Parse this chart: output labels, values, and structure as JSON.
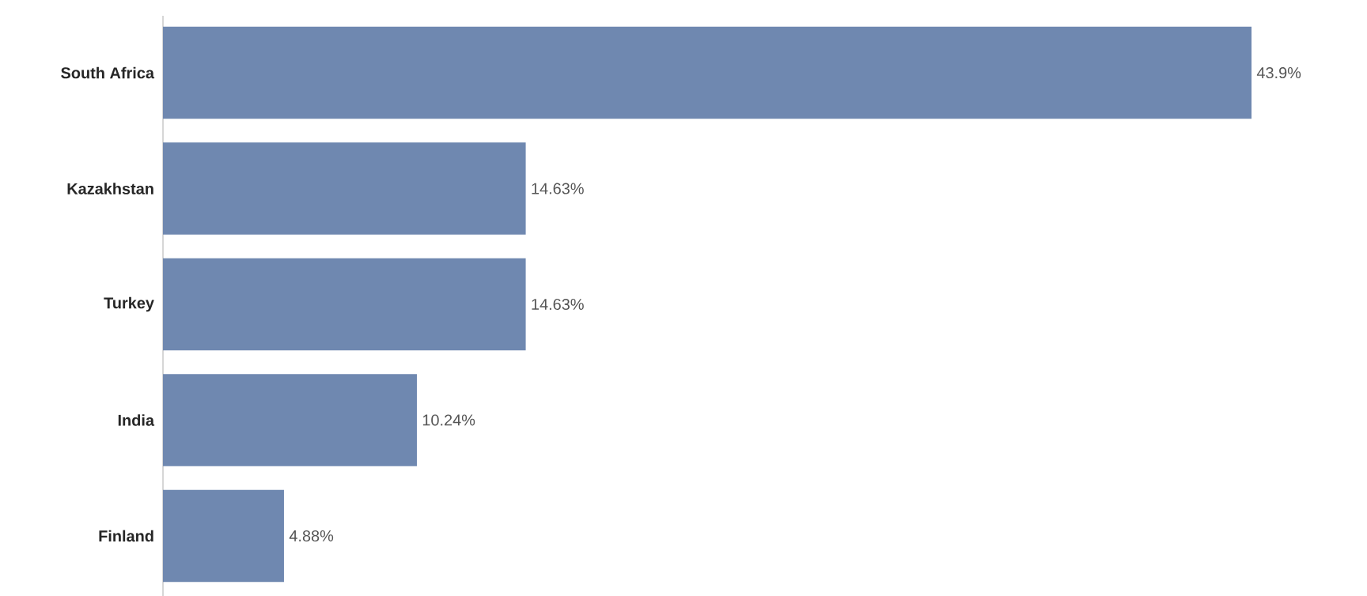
{
  "chart_data": {
    "type": "bar",
    "orientation": "horizontal",
    "categories": [
      "South Africa",
      "Kazakhstan",
      "Turkey",
      "India",
      "Finland"
    ],
    "values": [
      43.9,
      14.63,
      14.63,
      10.24,
      4.88
    ],
    "value_labels": [
      "43.9%",
      "14.63%",
      "14.63%",
      "10.24%",
      "4.88%"
    ],
    "color": "#6f88b0"
  }
}
